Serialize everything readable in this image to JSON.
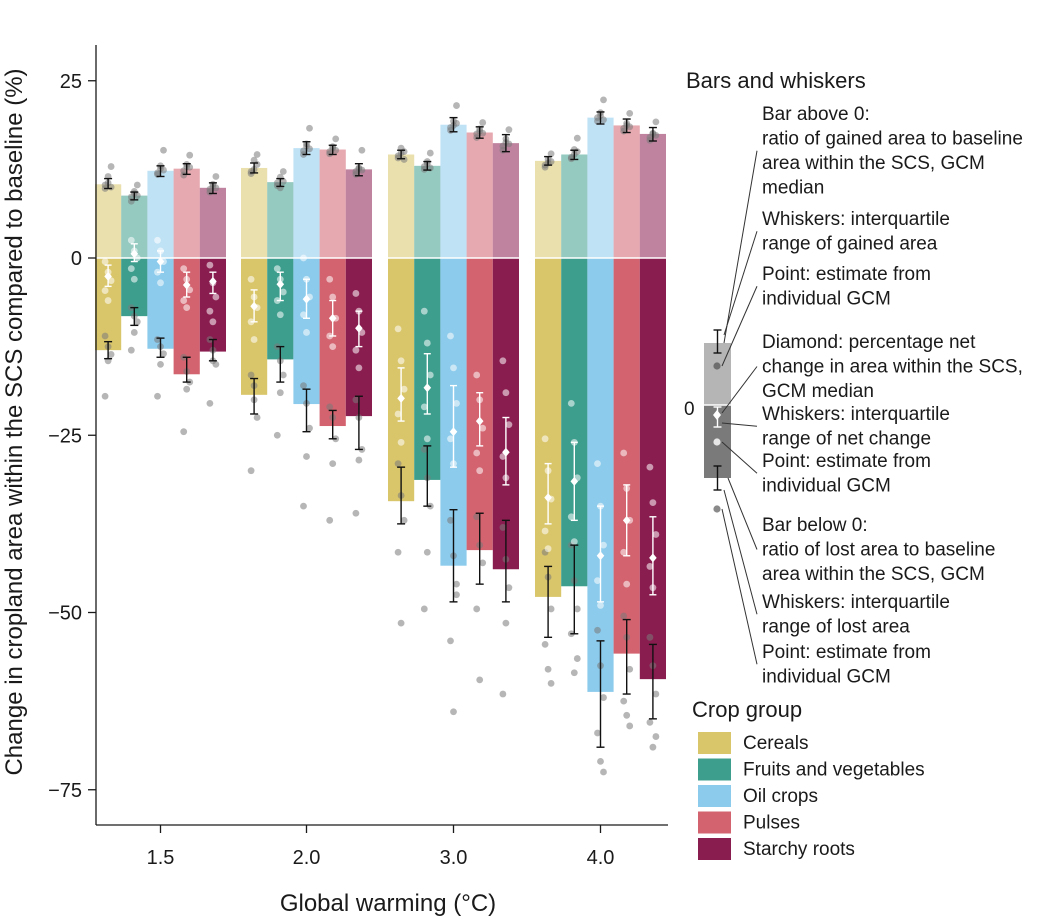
{
  "chart_data": {
    "type": "bar",
    "xlabel": "Global warming (°C)",
    "ylabel": "Change in cropland area within the SCS compared to baseline (%)",
    "ylim": [
      -80,
      30
    ],
    "yticks": [
      25,
      0,
      -25,
      -50,
      -75
    ],
    "categories": [
      "1.5",
      "2.0",
      "3.0",
      "4.0"
    ],
    "colors": {
      "Cereals": "#d9c66b",
      "Fruits and vegetables": "#3e9e8e",
      "Oil crops": "#8ccbec",
      "Pulses": "#d2636f",
      "Starchy roots": "#8a1d50"
    },
    "series": [
      {
        "name": "Cereals",
        "gain": [
          10.4,
          12.7,
          14.6,
          13.7
        ],
        "gain_iqr": [
          [
            9.8,
            11.2
          ],
          [
            12.0,
            13.4
          ],
          [
            14.0,
            15.2
          ],
          [
            13.1,
            14.3
          ]
        ],
        "loss": [
          -13.0,
          -19.3,
          -34.3,
          -47.8
        ],
        "loss_iqr": [
          [
            -14.2,
            -11.8
          ],
          [
            -22.0,
            -17.0
          ],
          [
            -37.5,
            -29.5
          ],
          [
            -53.5,
            -43.5
          ]
        ],
        "net": [
          -2.6,
          -6.8,
          -19.8,
          -33.8
        ],
        "net_iqr": [
          [
            -4.0,
            -1.0
          ],
          [
            -9.0,
            -4.5
          ],
          [
            -23.0,
            -15.5
          ],
          [
            -37.5,
            -29.0
          ]
        ]
      },
      {
        "name": "Fruits and vegetables",
        "gain": [
          8.8,
          10.7,
          13.0,
          14.6
        ],
        "gain_iqr": [
          [
            8.2,
            9.3
          ],
          [
            10.1,
            11.2
          ],
          [
            12.4,
            13.6
          ],
          [
            13.9,
            15.2
          ]
        ],
        "loss": [
          -8.2,
          -14.3,
          -31.3,
          -46.3
        ],
        "loss_iqr": [
          [
            -9.5,
            -7.0
          ],
          [
            -17.5,
            -12.5
          ],
          [
            -35.0,
            -26.5
          ],
          [
            -53.0,
            -40.5
          ]
        ],
        "net": [
          0.6,
          -3.7,
          -18.3,
          -31.5
        ],
        "net_iqr": [
          [
            -0.5,
            2.0
          ],
          [
            -6.0,
            -2.0
          ],
          [
            -22.0,
            -13.5
          ],
          [
            -37.0,
            -26.0
          ]
        ]
      },
      {
        "name": "Oil crops",
        "gain": [
          12.3,
          15.5,
          18.8,
          19.8
        ],
        "gain_iqr": [
          [
            11.5,
            13.0
          ],
          [
            14.6,
            16.4
          ],
          [
            17.8,
            19.8
          ],
          [
            18.9,
            20.6
          ]
        ],
        "loss": [
          -12.8,
          -20.6,
          -43.4,
          -61.2
        ],
        "loss_iqr": [
          [
            -14.0,
            -11.3
          ],
          [
            -24.5,
            -18.5
          ],
          [
            -48.5,
            -35.5
          ],
          [
            -69.0,
            -54.0
          ]
        ],
        "net": [
          -0.5,
          -5.8,
          -24.5,
          -42.0
        ],
        "net_iqr": [
          [
            -2.0,
            1.0
          ],
          [
            -8.5,
            -3.0
          ],
          [
            -29.5,
            -18.0
          ],
          [
            -48.5,
            -35.0
          ]
        ]
      },
      {
        "name": "Pulses",
        "gain": [
          12.6,
          15.3,
          17.7,
          18.7
        ],
        "gain_iqr": [
          [
            11.8,
            13.3
          ],
          [
            14.6,
            15.9
          ],
          [
            16.9,
            18.5
          ],
          [
            17.7,
            19.6
          ]
        ],
        "loss": [
          -16.4,
          -23.7,
          -41.2,
          -55.8
        ],
        "loss_iqr": [
          [
            -17.5,
            -14.0
          ],
          [
            -25.5,
            -21.5
          ],
          [
            -46.0,
            -36.0
          ],
          [
            -61.5,
            -51.0
          ]
        ],
        "net": [
          -3.8,
          -8.5,
          -23.0,
          -37.0
        ],
        "net_iqr": [
          [
            -5.5,
            -2.0
          ],
          [
            -11.0,
            -6.0
          ],
          [
            -26.5,
            -19.0
          ],
          [
            -42.0,
            -32.0
          ]
        ]
      },
      {
        "name": "Starchy roots",
        "gain": [
          9.9,
          12.5,
          16.2,
          17.5
        ],
        "gain_iqr": [
          [
            9.1,
            10.6
          ],
          [
            11.6,
            13.3
          ],
          [
            15.0,
            17.4
          ],
          [
            16.5,
            18.4
          ]
        ],
        "loss": [
          -13.2,
          -22.3,
          -43.9,
          -59.4
        ],
        "loss_iqr": [
          [
            -14.5,
            -11.5
          ],
          [
            -27.0,
            -19.5
          ],
          [
            -48.5,
            -37.0
          ],
          [
            -65.0,
            -54.5
          ]
        ],
        "net": [
          -3.3,
          -9.9,
          -27.4,
          -42.3
        ],
        "net_iqr": [
          [
            -5.0,
            -2.0
          ],
          [
            -12.5,
            -7.5
          ],
          [
            -32.0,
            -22.5
          ],
          [
            -47.5,
            -36.5
          ]
        ]
      }
    ],
    "gcm_points_gain": [
      [
        [
          10.3,
          11.5,
          12.9,
          9.8,
          10.6,
          10.0
        ],
        [
          12.2,
          13.8,
          14.6,
          11.9,
          12.5,
          13.2
        ],
        [
          14.1,
          15.5,
          15.0,
          14.4,
          14.8,
          13.9
        ],
        [
          13.1,
          13.9,
          14.7,
          12.8,
          13.4,
          13.6
        ]
      ],
      [
        [
          8.0,
          9.1,
          10.3,
          8.6,
          9.4,
          8.8
        ],
        [
          10.2,
          11.4,
          12.2,
          10.6,
          9.9,
          10.8
        ],
        [
          12.5,
          13.6,
          14.8,
          12.9,
          13.3,
          12.7
        ],
        [
          14.2,
          15.3,
          16.9,
          14.0,
          14.6,
          15.0
        ]
      ],
      [
        [
          11.8,
          12.6,
          15.2,
          12.0,
          13.0,
          12.4
        ],
        [
          14.6,
          15.8,
          18.3,
          15.1,
          16.1,
          15.4
        ],
        [
          18.0,
          19.3,
          21.5,
          18.4,
          18.7,
          19.0
        ],
        [
          19.3,
          20.5,
          22.3,
          19.8,
          20.1,
          19.5
        ]
      ],
      [
        [
          11.7,
          12.9,
          14.5,
          12.3,
          13.2,
          12.8
        ],
        [
          14.7,
          15.7,
          16.8,
          15.0,
          15.5,
          15.2
        ],
        [
          17.0,
          18.2,
          19.1,
          17.5,
          17.9,
          17.6
        ],
        [
          17.9,
          19.0,
          20.4,
          18.3,
          18.7,
          18.5
        ]
      ],
      [
        [
          9.3,
          10.4,
          11.5,
          9.7,
          10.1,
          9.9
        ],
        [
          11.8,
          12.7,
          15.2,
          12.2,
          12.6,
          12.4
        ],
        [
          15.2,
          16.8,
          18.1,
          15.8,
          16.3,
          16.1
        ],
        [
          16.6,
          17.6,
          19.2,
          17.0,
          17.5,
          17.3
        ]
      ]
    ],
    "gcm_points_net": [
      [
        [
          -0.5,
          -2.0,
          -3.2,
          -4.6,
          -6.0
        ],
        [
          -3.0,
          -5.5,
          -7.0,
          -9.0,
          -11.5
        ],
        [
          -10.0,
          -14.5,
          -18.5,
          -22.0,
          -26.0
        ],
        [
          -25.5,
          -30.0,
          -34.0,
          -38.5,
          -41.0
        ]
      ],
      [
        [
          2.5,
          1.0,
          0.0,
          -1.5,
          -3.0
        ],
        [
          -1.5,
          -3.0,
          -4.8,
          -6.0,
          -8.0
        ],
        [
          -7.5,
          -12.0,
          -16.5,
          -21.0,
          -25.5
        ],
        [
          -20.5,
          -26.0,
          -31.0,
          -36.5,
          -40.0
        ]
      ],
      [
        [
          2.5,
          1.0,
          -0.5,
          -2.0,
          -3.5
        ],
        [
          0.0,
          -3.0,
          -5.5,
          -8.0,
          -10.5
        ],
        [
          -11.0,
          -15.5,
          -20.5,
          -25.5,
          -29.0
        ],
        [
          -29.0,
          -35.0,
          -40.5,
          -45.5,
          -49.0
        ]
      ],
      [
        [
          -1.5,
          -3.0,
          -4.5,
          -6.0,
          -7.0
        ],
        [
          -3.0,
          -5.5,
          -8.5,
          -11.0,
          -12.5
        ],
        [
          -16.5,
          -20.0,
          -24.0,
          -27.5,
          -30.0
        ],
        [
          -27.5,
          -32.5,
          -37.0,
          -41.5,
          -46.0
        ]
      ],
      [
        [
          -1.0,
          -3.5,
          -5.5,
          -7.5,
          -9.0
        ],
        [
          -5.0,
          -7.5,
          -10.5,
          -13.0,
          -15.5
        ],
        [
          -14.5,
          -19.0,
          -23.5,
          -28.0,
          -31.0
        ],
        [
          -29.5,
          -34.5,
          -39.0,
          -43.5,
          -46.5
        ]
      ]
    ],
    "gcm_points_loss": [
      [
        [
          -11.0,
          -12.5,
          -13.6,
          -19.5,
          -14.5
        ],
        [
          -16.5,
          -20.0,
          -22.5,
          -30.0,
          -18.0
        ],
        [
          -29.0,
          -33.5,
          -37.0,
          -41.5,
          -51.5
        ],
        [
          -41.5,
          -45.0,
          -49.5,
          -54.5,
          -58.0,
          -60.0
        ]
      ],
      [
        [
          -7.0,
          -8.2,
          -9.0,
          -13.0,
          -10.5
        ],
        [
          -12.5,
          -14.5,
          -16.5,
          -25.0,
          -19.0
        ],
        [
          -27.0,
          -31.0,
          -35.0,
          -49.5,
          -41.5
        ],
        [
          -40.5,
          -45.5,
          -49.5,
          -53.0,
          -58.5,
          -56.5
        ]
      ],
      [
        [
          -11.5,
          -12.5,
          -13.5,
          -19.5,
          -15.0
        ],
        [
          -18.0,
          -20.5,
          -24.0,
          -35.0,
          -28.0
        ],
        [
          -37.0,
          -42.0,
          -46.0,
          -54.0,
          -64.0,
          -47.5
        ],
        [
          -52.5,
          -57.5,
          -62.0,
          -67.0,
          -71.0,
          -72.5
        ]
      ],
      [
        [
          -14.0,
          -16.0,
          -17.5,
          -24.5,
          -18.5
        ],
        [
          -21.0,
          -22.5,
          -25.5,
          -37.0,
          -29.0
        ],
        [
          -36.5,
          -40.5,
          -43.0,
          -49.5,
          -59.5
        ],
        [
          -50.5,
          -53.5,
          -58.0,
          -62.5,
          -64.5,
          -66.0
        ]
      ],
      [
        [
          -11.5,
          -13.0,
          -15.0,
          -20.5,
          -14.5
        ],
        [
          -20.0,
          -22.5,
          -27.0,
          -36.0,
          -28.5
        ],
        [
          -38.0,
          -42.5,
          -46.5,
          -61.5,
          -51.5
        ],
        [
          -53.5,
          -57.5,
          -61.5,
          -65.5,
          -69.0,
          -67.5
        ]
      ]
    ],
    "legend": {
      "title": "Crop group",
      "items": [
        "Cereals",
        "Fruits and vegetables",
        "Oil crops",
        "Pulses",
        "Starchy roots"
      ]
    },
    "explainer": {
      "title": "Bars and whiskers",
      "zero_label": "0",
      "annotations": [
        [
          "Bar above 0:",
          "ratio of gained area to baseline",
          "area within the SCS, GCM",
          "median"
        ],
        [
          "Whiskers: interquartile",
          "range of gained area"
        ],
        [
          "Point: estimate from",
          "individual GCM"
        ],
        [
          "Diamond: percentage net",
          "change in area within the SCS,",
          "GCM median"
        ],
        [
          "Whiskers: interquartile",
          "range of net change"
        ],
        [
          "Point: estimate from",
          "individual GCM"
        ],
        [
          "Bar below 0:",
          "ratio of lost area to baseline",
          "area within the SCS, GCM"
        ],
        [
          "Whiskers: interquartile",
          "range of lost area"
        ],
        [
          "Point: estimate from",
          "individual GCM"
        ]
      ]
    }
  }
}
